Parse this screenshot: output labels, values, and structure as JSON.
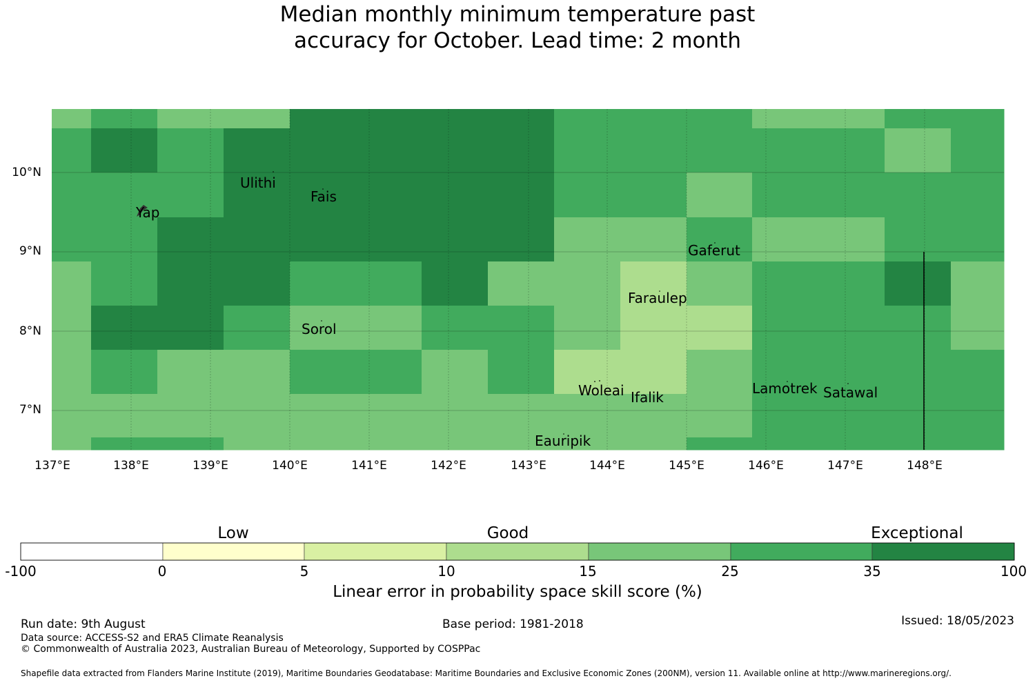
{
  "title_line1": "Median monthly minimum temperature past",
  "title_line2": "accuracy for October. Lead time: 2 month",
  "map": {
    "lat_labels": [
      "10°N",
      "9°N",
      "8°N",
      "7°N"
    ],
    "lon_labels": [
      "137°E",
      "138°E",
      "139°E",
      "140°E",
      "141°E",
      "142°E",
      "143°E",
      "144°E",
      "145°E",
      "146°E",
      "147°E",
      "148°E"
    ],
    "islands": [
      "Yap",
      "Ulithi",
      "Fais",
      "Gaferut",
      "Faraulep",
      "Sorol",
      "Woleai",
      "Ifalik",
      "Lamotrek",
      "Satawal",
      "Eauripik"
    ],
    "grid_cell_categories": [
      [
        4,
        5,
        4,
        4,
        6,
        6,
        6,
        5,
        5,
        5,
        4,
        5,
        5
      ],
      [
        5,
        6,
        5,
        6,
        6,
        6,
        6,
        5,
        5,
        5,
        5,
        4,
        5
      ],
      [
        5,
        5,
        5,
        6,
        6,
        6,
        6,
        5,
        5,
        4,
        5,
        5,
        5
      ],
      [
        5,
        5,
        6,
        6,
        6,
        6,
        6,
        4,
        4,
        5,
        4,
        5,
        5
      ],
      [
        4,
        5,
        6,
        6,
        5,
        6,
        4,
        4,
        3,
        4,
        5,
        6,
        4
      ],
      [
        4,
        6,
        6,
        5,
        4,
        5,
        5,
        4,
        3,
        3,
        5,
        5,
        4
      ],
      [
        4,
        5,
        4,
        4,
        5,
        4,
        5,
        3,
        3,
        4,
        5,
        5,
        5
      ],
      [
        4,
        4,
        4,
        4,
        4,
        4,
        4,
        4,
        4,
        4,
        5,
        5,
        5
      ],
      [
        4,
        5,
        5,
        4,
        4,
        4,
        4,
        4,
        4,
        5,
        5,
        5,
        5
      ]
    ]
  },
  "legend": {
    "categories": [
      "Low",
      "Good",
      "Exceptional"
    ],
    "ticks": [
      "-100",
      "0",
      "5",
      "10",
      "15",
      "25",
      "35",
      "100"
    ],
    "colors": [
      "#ffffff",
      "#ffffcc",
      "#d9f0a3",
      "#addd8e",
      "#78c679",
      "#41ab5d",
      "#238443"
    ],
    "title": "Linear error in probability space skill score (%)"
  },
  "footer": {
    "run_date": "Run date: 9th August",
    "base_period": "Base period: 1981-2018",
    "issued": "Issued: 18/05/2023",
    "data_source": "Data source: ACCESS-S2 and ERA5 Climate Reanalysis",
    "copyright": "© Commonwealth of Australia 2023, Australian Bureau of Meteorology, Supported by COSPPac",
    "shapefile": "Shapefile data extracted from Flanders Marine Institute (2019), Maritime Boundaries Geodatabase: Maritime Boundaries and Exclusive Economic Zones (200NM), version 11. Available online at http://www.marineregions.org/."
  }
}
